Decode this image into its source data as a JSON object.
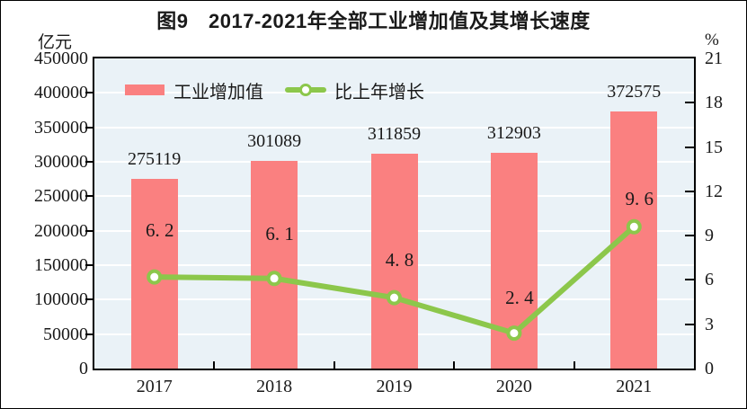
{
  "figure": {
    "title": "图9　2017-2021年全部工业增加值及其增长速度",
    "left_axis_unit": "亿元",
    "right_axis_unit": "%"
  },
  "legend": {
    "bar_label": "工业增加值",
    "line_label": "比上年增长"
  },
  "chart_data": {
    "type": "bar+line combo",
    "title": "图9　2017-2021年全部工业增加值及其增长速度",
    "categories": [
      "2017",
      "2018",
      "2019",
      "2020",
      "2021"
    ],
    "series": [
      {
        "name": "工业增加值",
        "type": "bar",
        "axis": "left",
        "unit": "亿元",
        "values": [
          275119,
          301089,
          311859,
          312903,
          372575
        ],
        "data_labels": [
          "275119",
          "301089",
          "311859",
          "312903",
          "372575"
        ],
        "color": "#FA8080"
      },
      {
        "name": "比上年增长",
        "type": "line",
        "axis": "right",
        "unit": "%",
        "values": [
          6.2,
          6.1,
          4.8,
          2.4,
          9.6
        ],
        "data_labels": [
          "6. 2",
          "6. 1",
          "4. 8",
          "2. 4",
          "9. 6"
        ],
        "color": "#8CC74B",
        "marker": "circle-white-fill"
      }
    ],
    "left_axis": {
      "label": "亿元",
      "range": [
        0,
        450000
      ],
      "tick_step": 50000,
      "ticks": [
        "450000",
        "400000",
        "350000",
        "300000",
        "250000",
        "200000",
        "150000",
        "100000",
        "50000",
        "0"
      ]
    },
    "right_axis": {
      "label": "%",
      "range": [
        0,
        21
      ],
      "tick_step": 3,
      "ticks": [
        "21",
        "18",
        "15",
        "12",
        "9",
        "6",
        "3",
        "0"
      ]
    },
    "grid": "horizontal white gridlines on light blue plot background",
    "legend_position": "top-left inside plot"
  },
  "colors": {
    "bar": "#FA8080",
    "line": "#8CC74B",
    "marker_fill": "#FFFFFF",
    "plot_background": "#EAF2F7",
    "gridline": "#FFFFFF",
    "axis_frame": "#000000",
    "text": "#1A1A1A",
    "page_background": "#FFFFFF"
  }
}
